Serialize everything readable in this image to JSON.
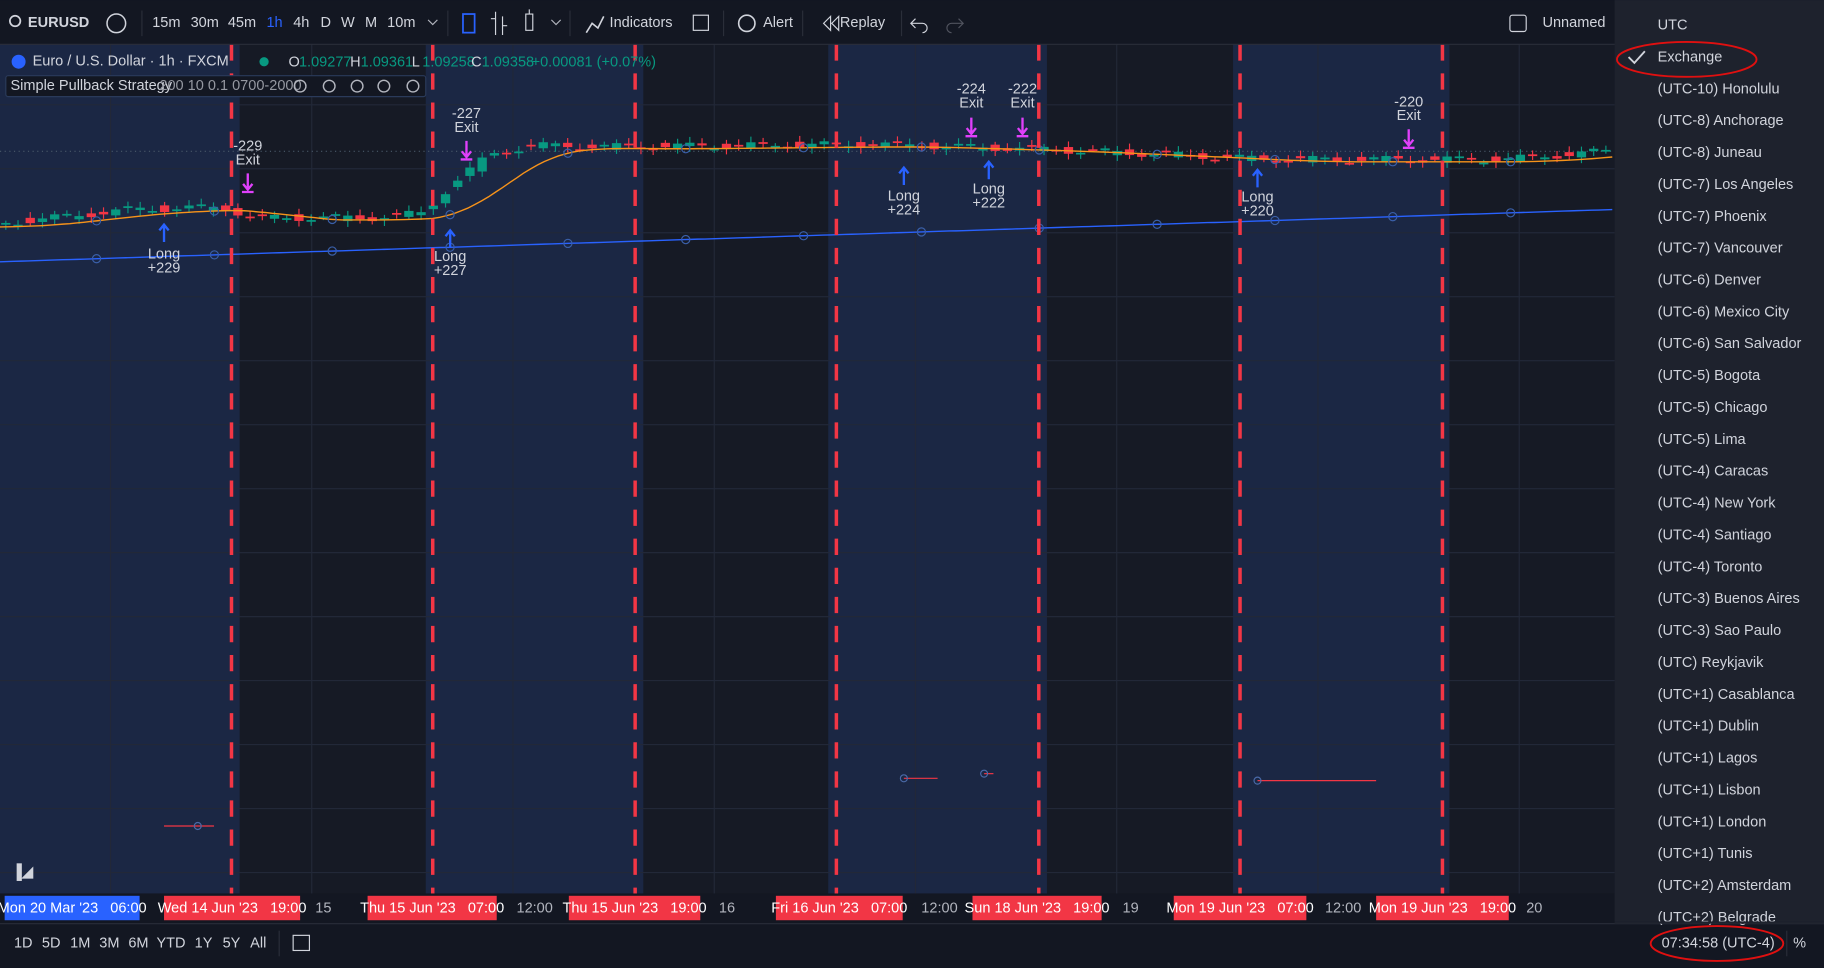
{
  "toolbar": {
    "symbol": "EURUSD",
    "intervals": [
      "15m",
      "30m",
      "45m",
      "1h",
      "4h",
      "D",
      "W",
      "M",
      "10m"
    ],
    "indicators": "Indicators",
    "alert": "Alert",
    "replay": "Replay",
    "layout_name": "Unnamed"
  },
  "legend": {
    "title": "Euro / U.S. Dollar · 1h · FXCM",
    "ohlc": [
      {
        "label": "O",
        "value": "1.09277"
      },
      {
        "label": "H",
        "value": "1.09361"
      },
      {
        "label": "L",
        "value": "1.09258"
      },
      {
        "label": "C",
        "value": "1.09358"
      }
    ],
    "change": "+0.00081 (+0.07%)"
  },
  "strategy": {
    "name": "Simple Pullback Strategy",
    "params": "200 10 0.1 0700-2000"
  },
  "trades": [
    {
      "entry": "Long",
      "entry_result": "+229",
      "exit_result": "-229",
      "exit": "Exit"
    },
    {
      "entry": "Long",
      "entry_result": "+227",
      "exit_result": "-227",
      "exit": "Exit"
    },
    {
      "entry": "Long",
      "entry_result": "+224",
      "exit_result": "-224",
      "exit": "Exit"
    },
    {
      "entry": "Long",
      "entry_result": "+222",
      "exit_result": "-222",
      "exit": "Exit"
    },
    {
      "entry": "Long",
      "entry_result": "+220",
      "exit_result": "-220",
      "exit": "Exit"
    }
  ],
  "time_axis": [
    "Mon 20 Mar '23   06:00",
    "Wed 14 Jun '23   19:00",
    "15",
    "Thu 15 Jun '23   07:00",
    "12:00",
    "Thu 15 Jun '23   19:00",
    "16",
    "Fri 16 Jun '23   07:00",
    "12:00",
    "Sun 18 Jun '23   19:00",
    "19",
    "Mon 19 Jun '23   07:00",
    "12:00",
    "Mon 19 Jun '23   19:00",
    "20"
  ],
  "bottom_bar": {
    "ranges": [
      "1D",
      "5D",
      "1M",
      "3M",
      "6M",
      "YTD",
      "1Y",
      "5Y",
      "All"
    ],
    "clock": "07:34:58 (UTC-4)",
    "percent": "%"
  },
  "timezones": [
    "UTC",
    "Exchange",
    "(UTC-10) Honolulu",
    "(UTC-8) Anchorage",
    "(UTC-8) Juneau",
    "(UTC-7) Los Angeles",
    "(UTC-7) Phoenix",
    "(UTC-7) Vancouver",
    "(UTC-6) Denver",
    "(UTC-6) Mexico City",
    "(UTC-6) San Salvador",
    "(UTC-5) Bogota",
    "(UTC-5) Chicago",
    "(UTC-5) Lima",
    "(UTC-4) Caracas",
    "(UTC-4) New York",
    "(UTC-4) Santiago",
    "(UTC-4) Toronto",
    "(UTC-3) Buenos Aires",
    "(UTC-3) Sao Paulo",
    "(UTC) Reykjavik",
    "(UTC+1) Casablanca",
    "(UTC+1) Dublin",
    "(UTC+1) Lagos",
    "(UTC+1) Lisbon",
    "(UTC+1) London",
    "(UTC+1) Tunis",
    "(UTC+2) Amsterdam",
    "(UTC+2) Belgrade"
  ]
}
